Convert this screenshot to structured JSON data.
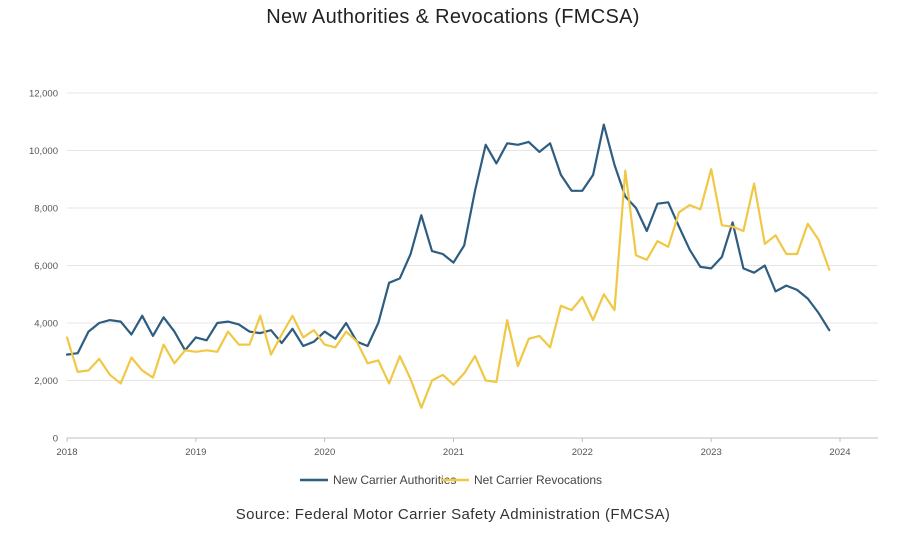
{
  "chart_data": {
    "type": "line",
    "title": "New Authorities & Revocations (FMCSA)",
    "source": "Source:  Federal Motor Carrier Safety Administration (FMCSA)",
    "xlabel": "",
    "ylabel": "",
    "ylim": [
      0,
      12000
    ],
    "yticks": [
      "0",
      "2,000",
      "4,000",
      "6,000",
      "8,000",
      "10,000",
      "12,000"
    ],
    "xticks": [
      "2018",
      "2019",
      "2020",
      "2021",
      "2022",
      "2023",
      "2024"
    ],
    "grid": true,
    "legend_placement": "bottom-center",
    "x_start_year": 2018,
    "series": [
      {
        "name": "New Carrier Authorities",
        "color": "#2e5d80",
        "values": [
          2900,
          2950,
          3700,
          4000,
          4100,
          4050,
          3600,
          4250,
          3550,
          4200,
          3700,
          3050,
          3500,
          3400,
          4000,
          4050,
          3950,
          3700,
          3650,
          3750,
          3300,
          3800,
          3200,
          3350,
          3700,
          3450,
          4000,
          3350,
          3200,
          4000,
          5400,
          5550,
          6400,
          7750,
          6500,
          6400,
          6100,
          6700,
          8600,
          10200,
          9550,
          10250,
          10200,
          10300,
          9950,
          10250,
          9150,
          8600,
          8600,
          9150,
          10900,
          9500,
          8400,
          8000,
          7200,
          8150,
          8200,
          7350,
          6550,
          5950,
          5900,
          6300,
          7500,
          5900,
          5750,
          6000,
          5100,
          5300,
          5150,
          4850,
          4350,
          3750
        ]
      },
      {
        "name": "Net Carrier Revocations",
        "color": "#f0c846",
        "values": [
          3500,
          2300,
          2350,
          2750,
          2200,
          1900,
          2800,
          2350,
          2100,
          3250,
          2600,
          3050,
          3000,
          3050,
          3000,
          3700,
          3250,
          3250,
          4250,
          2900,
          3600,
          4250,
          3500,
          3750,
          3250,
          3150,
          3700,
          3350,
          2600,
          2700,
          1900,
          2850,
          2050,
          1050,
          2000,
          2200,
          1850,
          2250,
          2850,
          2000,
          1950,
          4100,
          2500,
          3450,
          3550,
          3150,
          4600,
          4450,
          4900,
          4100,
          5000,
          4450,
          9300,
          6350,
          6200,
          6850,
          6650,
          7850,
          8100,
          7950,
          9350,
          7400,
          7350,
          7200,
          8850,
          6750,
          7050,
          6400,
          6400,
          7450,
          6900,
          5850
        ]
      }
    ]
  }
}
